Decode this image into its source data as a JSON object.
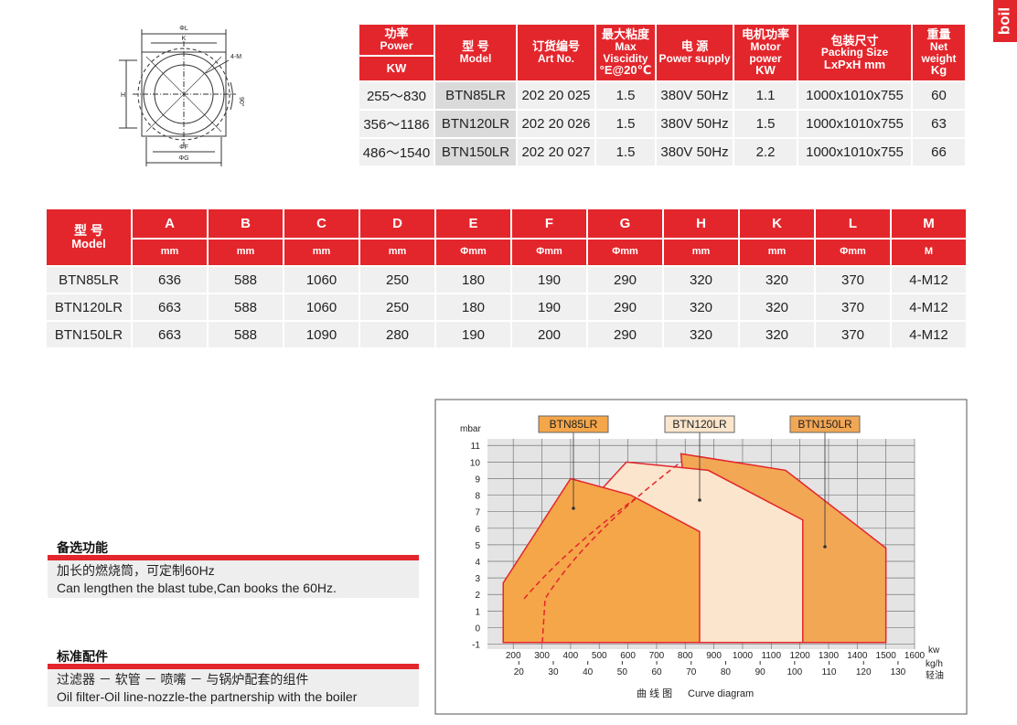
{
  "logo": "boil",
  "drawing": {
    "labels": [
      "ΦL",
      "K",
      "4-M",
      "H",
      "90°",
      "ΦF",
      "ΦG"
    ]
  },
  "table1": {
    "columns": [
      {
        "zh": "功率",
        "en": "Power",
        "unit": "KW"
      },
      {
        "zh": "型 号",
        "en": "Model"
      },
      {
        "zh": "订货编号",
        "en": "Art No."
      },
      {
        "zh": "最大粘度",
        "en": "Max Viscidity",
        "unit": "°E@20℃"
      },
      {
        "zh": "电 源",
        "en": "Power supply"
      },
      {
        "zh": "电机功率",
        "en": "Motor power",
        "unit": "KW"
      },
      {
        "zh": "包装尺寸",
        "en": "Packing Size",
        "unit": "LxPxH mm"
      },
      {
        "zh": "重量",
        "en": "Net weight",
        "unit": "Kg"
      }
    ],
    "rows": [
      [
        "255～830",
        "BTN85LR",
        "202 20 025",
        "1.5",
        "380V 50Hz",
        "1.1",
        "1000x1010x755",
        "60"
      ],
      [
        "356～1186",
        "BTN120LR",
        "202 20 026",
        "1.5",
        "380V 50Hz",
        "1.5",
        "1000x1010x755",
        "63"
      ],
      [
        "486～1540",
        "BTN150LR",
        "202 20 027",
        "1.5",
        "380V 50Hz",
        "2.2",
        "1000x1010x755",
        "66"
      ]
    ]
  },
  "table2": {
    "model_zh": "型 号",
    "model_en": "Model",
    "columns": [
      "A",
      "B",
      "C",
      "D",
      "E",
      "F",
      "G",
      "H",
      "K",
      "L",
      "M"
    ],
    "units": [
      "mm",
      "mm",
      "mm",
      "mm",
      "Φmm",
      "Φmm",
      "Φmm",
      "mm",
      "mm",
      "Φmm",
      "M"
    ],
    "rows": [
      [
        "BTN85LR",
        "636",
        "588",
        "1060",
        "250",
        "180",
        "190",
        "290",
        "320",
        "320",
        "370",
        "4-M12"
      ],
      [
        "BTN120LR",
        "663",
        "588",
        "1060",
        "250",
        "180",
        "190",
        "290",
        "320",
        "320",
        "370",
        "4-M12"
      ],
      [
        "BTN150LR",
        "663",
        "588",
        "1090",
        "280",
        "190",
        "200",
        "290",
        "320",
        "320",
        "370",
        "4-M12"
      ]
    ]
  },
  "sections": [
    {
      "title": "备选功能",
      "lines": [
        "加长的燃烧筒，可定制60Hz",
        "Can lengthen the blast tube,Can books the 60Hz."
      ]
    },
    {
      "title": "标准配件",
      "lines": [
        "过滤器 － 软管 － 喷嘴 － 与锅炉配套的组件",
        "Oil filter-Oil line-nozzle-the partnership with the boiler"
      ]
    }
  ],
  "chart_data": {
    "type": "area",
    "ylabel": "mbar",
    "xlabel": "kw",
    "x2label": "kg/h",
    "x2sublabel": "轻油",
    "caption_zh": "曲 线 图",
    "caption_en": "Curve diagram",
    "xlim": [
      110,
      1600
    ],
    "xticks": [
      200,
      300,
      400,
      500,
      600,
      700,
      800,
      900,
      1000,
      1100,
      1200,
      1300,
      1400,
      1500,
      1600
    ],
    "x2lim": [
      10.9,
      134.8
    ],
    "x2ticks": [
      20,
      30,
      40,
      50,
      60,
      70,
      80,
      90,
      100,
      110,
      120,
      130
    ],
    "ylim": [
      -1.3,
      11.4
    ],
    "yticks": [
      -1,
      0,
      1,
      2,
      3,
      4,
      5,
      6,
      7,
      8,
      9,
      10,
      11
    ],
    "grid": true,
    "series": [
      {
        "name": "BTN150LR",
        "color": "#f2a755",
        "x": [
          850,
          785,
          1150,
          1500,
          1500
        ],
        "values": [
          -0.9,
          10.5,
          9.5,
          4.8,
          -0.9
        ]
      },
      {
        "name": "BTN120LR",
        "color": "#fbe5cc",
        "x": [
          235,
          235,
          595,
          880,
          1210,
          1210
        ],
        "values": [
          -0.9,
          3.2,
          10.0,
          9.5,
          6.5,
          -0.9
        ]
      },
      {
        "name": "BTN85LR",
        "color": "#f4a649",
        "x": [
          165,
          165,
          400,
          610,
          850,
          850
        ],
        "values": [
          -0.9,
          2.7,
          9.0,
          8.0,
          5.8,
          -0.9
        ]
      }
    ]
  }
}
